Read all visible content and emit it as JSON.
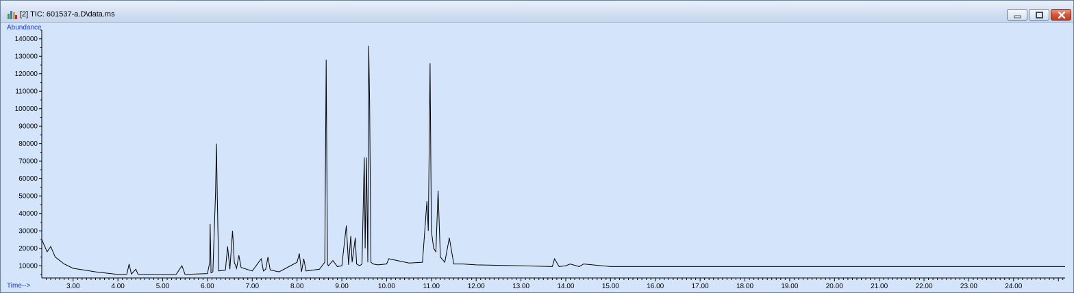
{
  "window": {
    "title": "[2] TIC: 601537-a.D\\data.ms",
    "buttons": {
      "minimize": "minimize-icon",
      "maximize": "maximize-icon",
      "close": "close-icon"
    }
  },
  "chart_data": {
    "type": "line",
    "title": "",
    "xlabel": "Time-->",
    "ylabel": "Abundance",
    "xlim": [
      2.3,
      25.15
    ],
    "ylim": [
      3000,
      145000
    ],
    "grid": false,
    "x_ticks": [
      3.0,
      4.0,
      5.0,
      6.0,
      7.0,
      8.0,
      9.0,
      10.0,
      11.0,
      12.0,
      13.0,
      14.0,
      15.0,
      16.0,
      17.0,
      18.0,
      19.0,
      20.0,
      21.0,
      22.0,
      23.0,
      24.0
    ],
    "x_tick_labels": [
      "3.00",
      "4.00",
      "5.00",
      "6.00",
      "7.00",
      "8.00",
      "9.00",
      "10.00",
      "11.00",
      "12.00",
      "13.00",
      "14.00",
      "15.00",
      "16.00",
      "17.00",
      "18.00",
      "19.00",
      "20.00",
      "21.00",
      "22.00",
      "23.00",
      "24.00"
    ],
    "y_ticks": [
      10000,
      20000,
      30000,
      40000,
      50000,
      60000,
      70000,
      80000,
      90000,
      100000,
      110000,
      120000,
      130000,
      140000
    ],
    "y_tick_labels": [
      "10000",
      "20000",
      "30000",
      "40000",
      "50000",
      "60000",
      "70000",
      "80000",
      "90000",
      "100000",
      "110000",
      "120000",
      "130000",
      "140000"
    ],
    "series": [
      {
        "color": "#000000",
        "x": [
          2.3,
          2.35,
          2.42,
          2.5,
          2.6,
          2.8,
          3.0,
          3.5,
          4.0,
          4.2,
          4.25,
          4.3,
          4.4,
          4.45,
          4.6,
          5.0,
          5.3,
          5.43,
          5.5,
          5.7,
          6.0,
          6.05,
          6.06,
          6.08,
          6.12,
          6.18,
          6.2,
          6.22,
          6.25,
          6.4,
          6.45,
          6.5,
          6.56,
          6.6,
          6.65,
          6.7,
          6.75,
          7.0,
          7.2,
          7.25,
          7.3,
          7.35,
          7.4,
          7.6,
          8.0,
          8.05,
          8.1,
          8.15,
          8.2,
          8.5,
          8.62,
          8.65,
          8.66,
          8.68,
          8.7,
          8.8,
          8.9,
          9.0,
          9.1,
          9.15,
          9.2,
          9.23,
          9.3,
          9.33,
          9.4,
          9.45,
          9.5,
          9.52,
          9.55,
          9.58,
          9.6,
          9.62,
          9.65,
          9.7,
          9.8,
          10.0,
          10.05,
          10.5,
          10.8,
          10.9,
          10.93,
          10.97,
          11.0,
          11.05,
          11.1,
          11.15,
          11.2,
          11.3,
          11.4,
          11.5,
          11.7,
          12.0,
          13.0,
          13.7,
          13.75,
          13.85,
          14.0,
          14.1,
          14.3,
          14.4,
          15.0,
          16.0,
          17.0,
          18.0,
          19.0,
          20.0,
          21.0,
          22.0,
          23.0,
          24.0,
          25.0,
          25.15
        ],
        "y": [
          25000,
          22000,
          18000,
          21000,
          15000,
          11000,
          8500,
          6500,
          5000,
          5200,
          11000,
          5200,
          8000,
          5000,
          5000,
          4800,
          5000,
          10000,
          5000,
          5200,
          5500,
          12000,
          34000,
          6000,
          6500,
          52000,
          80000,
          48000,
          7000,
          7500,
          21000,
          8000,
          30000,
          12000,
          8500,
          16000,
          9000,
          7000,
          14000,
          7000,
          8000,
          15000,
          7500,
          6500,
          12000,
          17000,
          6500,
          14000,
          7000,
          8000,
          12000,
          128000,
          90000,
          11000,
          10000,
          13000,
          9500,
          10000,
          33000,
          10500,
          27000,
          12000,
          26000,
          11000,
          10000,
          11000,
          72000,
          20000,
          72000,
          12000,
          136000,
          105000,
          12000,
          11000,
          10500,
          11000,
          14000,
          11500,
          12000,
          47000,
          30000,
          126000,
          30000,
          20000,
          18000,
          53000,
          15000,
          12000,
          26000,
          11000,
          11000,
          10500,
          10000,
          9500,
          14000,
          9500,
          10000,
          11000,
          9500,
          11000,
          9500,
          9500,
          9500,
          9500,
          9500,
          9500,
          9500,
          9500,
          9500,
          9500,
          9500,
          9500
        ]
      }
    ]
  }
}
